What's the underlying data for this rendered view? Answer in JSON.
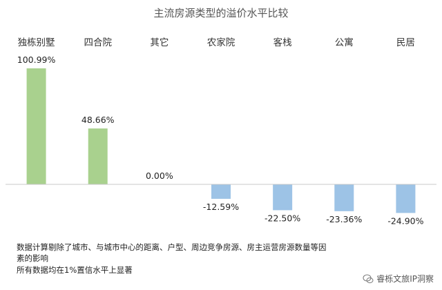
{
  "chart_data": {
    "type": "bar",
    "title": "主流房源类型的溢价水平比较",
    "categories": [
      "独栋别墅",
      "四合院",
      "其它",
      "农家院",
      "客栈",
      "公寓",
      "民居"
    ],
    "values": [
      100.99,
      48.66,
      0.0,
      -12.59,
      -22.5,
      -23.36,
      -24.9
    ],
    "value_labels": [
      "100.99%",
      "48.66%",
      "0.00%",
      "-12.59%",
      "-22.50%",
      "-23.36%",
      "-24.90%"
    ],
    "unit": "%",
    "ylim": [
      -30,
      105
    ],
    "grid": false,
    "legend": "none",
    "colors": {
      "positive": "#a9d18e",
      "negative": "#9dc3e6",
      "axis": "#c8c8c8"
    }
  },
  "notes": {
    "line1": "数据计算剔除了城市、与城市中心的距离、户型、周边竞争房源、房主运营房源数量等因",
    "line2": "素的影响",
    "line3": "所有数据均在1%置信水平上显著"
  },
  "watermark": {
    "text": "睿栎文旅IP洞察",
    "icon": "wechat-like-icon"
  }
}
